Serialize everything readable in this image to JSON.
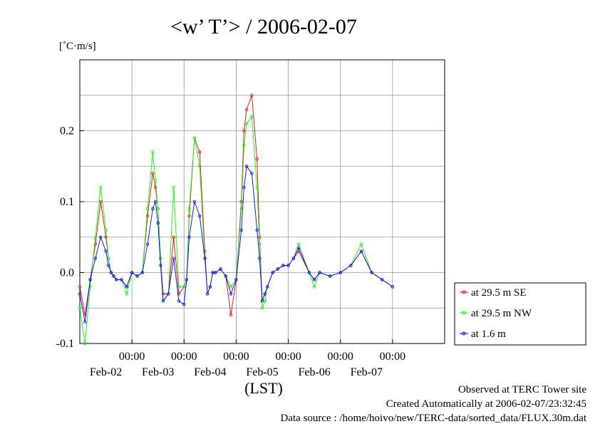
{
  "chart_data": {
    "type": "line",
    "title": "<w’ T’> / 2006-02-07",
    "ylabel": "[˚C·m/s]",
    "xlabel": "(LST)",
    "ylim": [
      -0.1,
      0.3
    ],
    "xlim": [
      0,
      7
    ],
    "y_ticks": [
      -0.1,
      0.0,
      0.1,
      0.2
    ],
    "y_tick_labels": [
      "-0.1",
      "0.0",
      "0.1",
      "0.2"
    ],
    "x_time_tick_label": "00:00",
    "x_time_ticks": [
      1,
      2,
      3,
      4,
      5,
      6
    ],
    "x_date_labels": [
      "Feb-02",
      "Feb-03",
      "Feb-04",
      "Feb-05",
      "Feb-06",
      "Feb-07"
    ],
    "x_date_label_positions": [
      0.5,
      1.5,
      2.5,
      3.5,
      4.5,
      5.5
    ],
    "grid": true,
    "legend_position": "bottom-right",
    "x_unit": "days from 2006-02-01 00:00 LST",
    "series": [
      {
        "name": "at 29.5 m SE",
        "color": "#ff0000",
        "x": [
          0,
          0.1,
          0.2,
          0.3,
          0.4,
          0.5,
          0.55,
          0.6,
          0.65,
          0.7,
          0.8,
          0.9,
          1.0,
          1.1,
          1.2,
          1.3,
          1.4,
          1.45,
          1.5,
          1.55,
          1.6,
          1.7,
          1.8,
          1.9,
          2.0,
          2.05,
          2.1,
          2.2,
          2.3,
          2.4,
          2.45,
          2.5,
          2.55,
          2.6,
          2.7,
          2.8,
          2.9,
          3.0,
          3.1,
          3.15,
          3.2,
          3.3,
          3.4,
          3.45,
          3.5,
          3.55,
          3.6,
          3.7,
          3.8,
          3.9,
          4.0,
          4.1,
          4.2,
          4.4,
          4.5,
          4.6,
          4.8,
          5.0,
          5.2,
          5.4,
          5.6,
          5.8,
          6.0
        ],
        "values": [
          -0.02,
          -0.06,
          -0.01,
          0.04,
          0.1,
          0.05,
          0.02,
          0.0,
          -0.005,
          -0.01,
          -0.01,
          -0.02,
          0.0,
          -0.005,
          0.0,
          0.08,
          0.14,
          0.12,
          0.09,
          0.02,
          -0.03,
          -0.03,
          0.05,
          -0.03,
          -0.02,
          -0.01,
          0.08,
          0.19,
          0.17,
          0.03,
          -0.03,
          -0.02,
          0.0,
          0.0,
          0.005,
          -0.005,
          -0.06,
          -0.01,
          0.1,
          0.2,
          0.23,
          0.25,
          0.16,
          0.05,
          -0.04,
          -0.03,
          -0.02,
          0.0,
          0.005,
          0.01,
          0.01,
          0.02,
          0.03,
          0.0,
          -0.01,
          0.0,
          -0.005,
          0.0,
          0.01,
          0.03,
          0.0,
          -0.01,
          -0.02
        ]
      },
      {
        "name": "at 29.5 m NW",
        "color": "#00ff00",
        "x": [
          0,
          0.1,
          0.2,
          0.3,
          0.4,
          0.5,
          0.55,
          0.6,
          0.65,
          0.7,
          0.8,
          0.9,
          1.0,
          1.1,
          1.2,
          1.3,
          1.4,
          1.45,
          1.5,
          1.55,
          1.6,
          1.7,
          1.8,
          1.9,
          2.0,
          2.05,
          2.1,
          2.2,
          2.3,
          2.4,
          2.45,
          2.5,
          2.55,
          2.6,
          2.7,
          2.8,
          2.9,
          3.0,
          3.1,
          3.15,
          3.2,
          3.3,
          3.4,
          3.45,
          3.5,
          3.55,
          3.6,
          3.7,
          3.8,
          3.9,
          4.0,
          4.1,
          4.2,
          4.4,
          4.5,
          4.6,
          4.8,
          5.0,
          5.2,
          5.4,
          5.6,
          5.8,
          6.0
        ],
        "values": [
          -0.05,
          -0.1,
          -0.02,
          0.05,
          0.12,
          0.06,
          0.02,
          0.0,
          -0.005,
          -0.01,
          -0.01,
          -0.03,
          0.0,
          -0.005,
          0.0,
          0.09,
          0.17,
          0.13,
          0.09,
          0.02,
          -0.04,
          -0.03,
          0.12,
          -0.02,
          -0.02,
          -0.01,
          0.09,
          0.19,
          0.15,
          0.02,
          -0.03,
          -0.02,
          0.0,
          0.0,
          0.005,
          -0.005,
          -0.02,
          -0.01,
          0.09,
          0.18,
          0.21,
          0.22,
          0.12,
          0.04,
          -0.05,
          -0.04,
          -0.02,
          0.0,
          0.005,
          0.01,
          0.01,
          0.02,
          0.04,
          0.0,
          -0.02,
          0.0,
          -0.005,
          0.0,
          0.01,
          0.04,
          0.0,
          -0.01,
          -0.02
        ]
      },
      {
        "name": "at 1.6 m",
        "color": "#0000ff",
        "x": [
          0,
          0.1,
          0.2,
          0.3,
          0.4,
          0.5,
          0.55,
          0.6,
          0.65,
          0.7,
          0.8,
          0.9,
          1.0,
          1.1,
          1.2,
          1.3,
          1.4,
          1.45,
          1.5,
          1.55,
          1.6,
          1.7,
          1.8,
          1.9,
          2.0,
          2.05,
          2.1,
          2.2,
          2.3,
          2.4,
          2.45,
          2.5,
          2.55,
          2.6,
          2.7,
          2.8,
          2.9,
          3.0,
          3.1,
          3.15,
          3.2,
          3.3,
          3.4,
          3.45,
          3.5,
          3.55,
          3.6,
          3.7,
          3.8,
          3.9,
          4.0,
          4.1,
          4.2,
          4.4,
          4.5,
          4.6,
          4.8,
          5.0,
          5.2,
          5.4,
          5.6,
          5.8,
          6.0
        ],
        "values": [
          -0.03,
          -0.07,
          -0.01,
          0.02,
          0.05,
          0.03,
          0.01,
          0.0,
          -0.005,
          -0.01,
          -0.01,
          -0.02,
          0.0,
          -0.005,
          0.0,
          0.04,
          0.09,
          0.1,
          0.07,
          0.01,
          -0.04,
          -0.03,
          0.02,
          -0.04,
          -0.045,
          -0.01,
          0.05,
          0.1,
          0.08,
          0.02,
          -0.03,
          -0.02,
          0.0,
          0.0,
          0.005,
          -0.005,
          -0.03,
          -0.01,
          0.06,
          0.12,
          0.15,
          0.14,
          0.06,
          0.02,
          -0.04,
          -0.03,
          -0.02,
          0.0,
          0.005,
          0.01,
          0.01,
          0.02,
          0.035,
          0.0,
          -0.01,
          0.0,
          -0.005,
          0.0,
          0.01,
          0.03,
          0.0,
          -0.01,
          -0.02
        ]
      }
    ]
  },
  "footer": {
    "line1": "Observed at TERC Tower site",
    "line2": "Created Automatically at 2006-02-07/23:32:45",
    "line3": "Data source : /home/hoivo/new/TERC-data/sorted_data/FLUX.30m.dat"
  }
}
